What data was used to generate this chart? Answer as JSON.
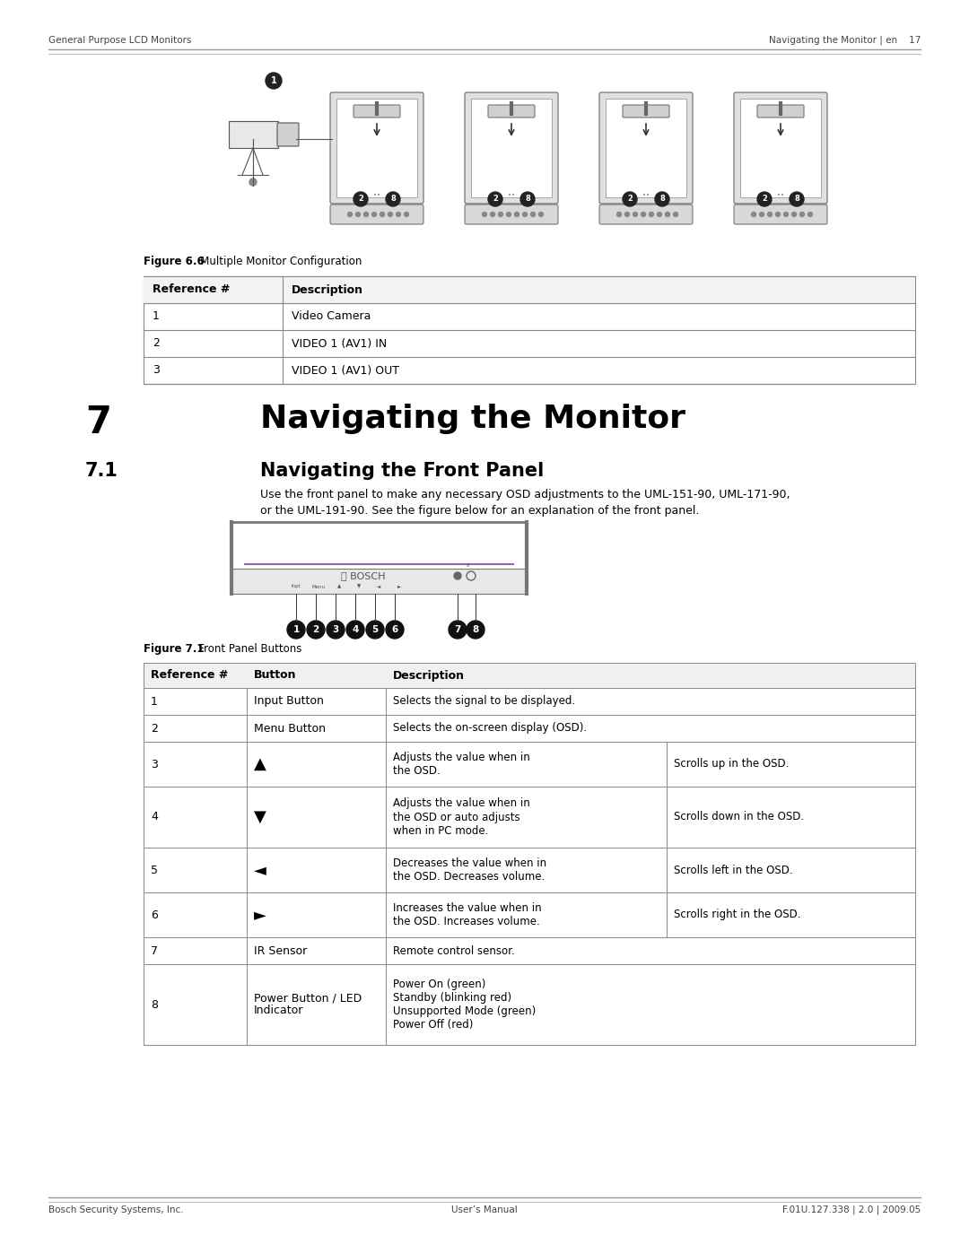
{
  "page_bg": "#ffffff",
  "header_left": "General Purpose LCD Monitors",
  "header_right": "Navigating the Monitor | en    17",
  "footer_left": "Bosch Security Systems, Inc.",
  "footer_center": "User’s Manual",
  "footer_right": "F.01U.127.338 | 2.0 | 2009.05",
  "fig66_caption_bold": "Figure 6.6",
  "fig66_caption_normal": "   Multiple Monitor Configuration",
  "table1_headers": [
    "Reference #",
    "Description"
  ],
  "table1_rows": [
    [
      "1",
      "Video Camera"
    ],
    [
      "2",
      "VIDEO 1 (AV1) IN"
    ],
    [
      "3",
      "VIDEO 1 (AV1) OUT"
    ]
  ],
  "section7_num": "7",
  "section7_title": "Navigating the Monitor",
  "section71_num": "7.1",
  "section71_title": "Navigating the Front Panel",
  "body_line1": "Use the front panel to make any necessary OSD adjustments to the UML-151-90, UML-171-90,",
  "body_line2": "or the UML-191-90. See the figure below for an explanation of the front panel.",
  "fig71_caption_bold": "Figure 7.1",
  "fig71_caption_normal": "   Front Panel Buttons",
  "table2_col_headers": [
    "Reference #",
    "Button",
    "Description"
  ],
  "table2_rows": [
    {
      "ref": "1",
      "btn": "Input Button",
      "desc1": "Selects the signal to be displayed.",
      "desc2": "",
      "rh": 30
    },
    {
      "ref": "2",
      "btn": "Menu Button",
      "desc1": "Selects the on-screen display (OSD).",
      "desc2": "",
      "rh": 30
    },
    {
      "ref": "3",
      "btn": "▲",
      "desc1": "Adjusts the value when in\nthe OSD.",
      "desc2": "Scrolls up in the OSD.",
      "rh": 50
    },
    {
      "ref": "4",
      "btn": "▼",
      "desc1": "Adjusts the value when in\nthe OSD or auto adjusts\nwhen in PC mode.",
      "desc2": "Scrolls down in the OSD.",
      "rh": 68
    },
    {
      "ref": "5",
      "btn": "◄",
      "desc1": "Decreases the value when in\nthe OSD. Decreases volume.",
      "desc2": "Scrolls left in the OSD.",
      "rh": 50
    },
    {
      "ref": "6",
      "btn": "►",
      "desc1": "Increases the value when in\nthe OSD. Increases volume.",
      "desc2": "Scrolls right in the OSD.",
      "rh": 50
    },
    {
      "ref": "7",
      "btn": "IR Sensor",
      "desc1": "Remote control sensor.",
      "desc2": "",
      "rh": 30
    },
    {
      "ref": "8",
      "btn": "Power Button / LED\nIndicator",
      "desc1": "Power On (green)\nStandby (blinking red)\nUnsupported Mode (green)\nPower Off (red)",
      "desc2": "",
      "rh": 90
    }
  ]
}
